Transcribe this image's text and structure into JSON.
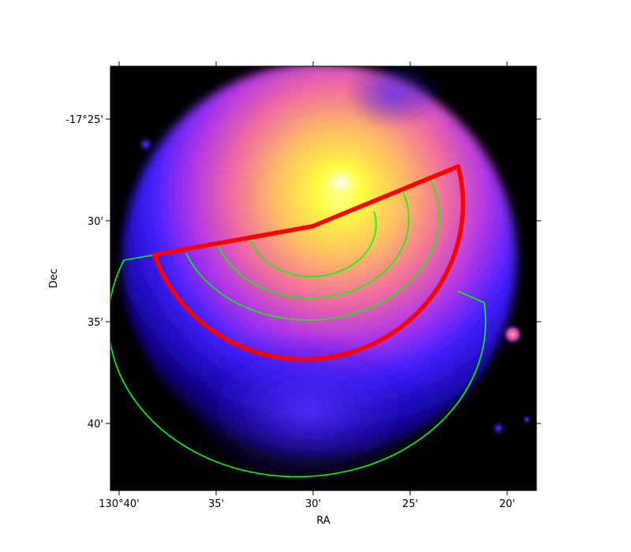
{
  "axes": {
    "xlabel": "RA",
    "ylabel": "Dec",
    "x_ticks": [
      "130°40'",
      "35'",
      "30'",
      "25'",
      "20'"
    ],
    "y_ticks": [
      "-17°25'",
      "30'",
      "35'",
      "40'"
    ]
  },
  "image": {
    "colormap": "gnuplot2-like (black → blue → magenta → orange → yellow → white)",
    "background_color": "#000000"
  },
  "overlays": {
    "sector_outline_color": "#ff0000",
    "annulus_color": "#00ff00",
    "green_annuli_count": 5
  }
}
